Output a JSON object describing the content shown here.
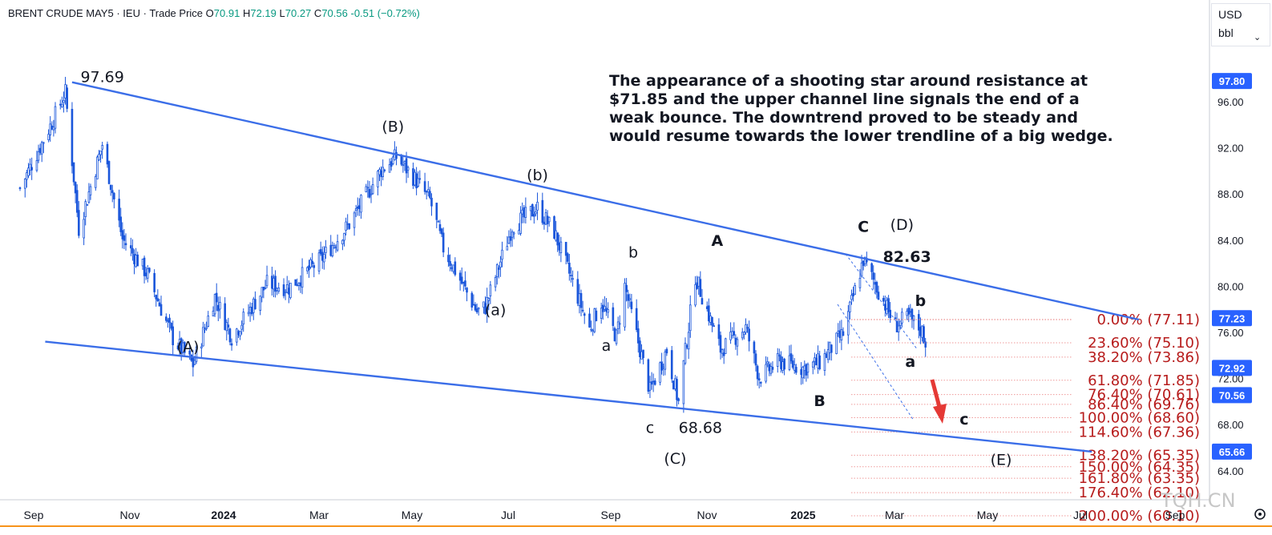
{
  "header": {
    "symbol": "BRENT CRUDE MAY5",
    "exchange": "IEU",
    "price_type": "Trade Price",
    "open_label": "O",
    "open": "70.91",
    "high_label": "H",
    "high": "72.19",
    "low_label": "L",
    "low": "70.27",
    "close_label": "C",
    "close": "70.56",
    "change": "-0.51 (−0.72%)"
  },
  "currency": {
    "unit": "USD",
    "measure": "bbl"
  },
  "colors": {
    "candle": "#1a56db",
    "trendline": "#3b6ee8",
    "fib": "#b71c1c",
    "badge": "#2962ff",
    "arrow": "#e53935"
  },
  "annotation": "The appearance of a shooting star around resistance at $71.85 and the upper channel line signals the end of a weak bounce.  The downtrend proved to be steady and would resume towards the lower trendline of a big wedge.",
  "annotation_lines": [
    "The appearance of a shooting star around resistance at",
    "$71.85 and the upper channel line signals the end of a",
    "weak bounce.  The downtrend proved to be steady and",
    "would resume towards the lower trendline of a big wedge."
  ],
  "watermark": "TQH.CN",
  "chart_data": {
    "type": "line",
    "title": "",
    "xlabel": "",
    "ylabel": "",
    "x_ticks": [
      "Sep",
      "Nov",
      "2024",
      "Mar",
      "May",
      "Jul",
      "Sep",
      "Nov",
      "2025",
      "Mar",
      "May",
      "Jul",
      "Sep"
    ],
    "y_ticks": [
      "96.00",
      "92.00",
      "88.00",
      "84.00",
      "80.00",
      "76.00",
      "72.00",
      "68.00",
      "64.00"
    ],
    "ylim": [
      61,
      99.5
    ],
    "x_range": [
      "2023-08-01",
      "2025-10-01"
    ],
    "grid": false,
    "price_badges": [
      "97.80",
      "77.23",
      "72.92",
      "70.56",
      "65.66"
    ],
    "series": [
      {
        "x": [
          "2023-09-01",
          "2023-09-20",
          "2023-09-28",
          "2023-10-06",
          "2023-10-20",
          "2023-11-01",
          "2023-11-16",
          "2023-12-01",
          "2023-12-13",
          "2023-12-26",
          "2024-01-05",
          "2024-01-26",
          "2024-02-08",
          "2024-02-27",
          "2024-03-15",
          "2024-04-03",
          "2024-04-12",
          "2024-04-22",
          "2024-05-02",
          "2024-05-10",
          "2024-05-30",
          "2024-06-04",
          "2024-06-20",
          "2024-07-05",
          "2024-07-15",
          "2024-08-05",
          "2024-08-12",
          "2024-08-21",
          "2024-08-26",
          "2024-09-10",
          "2024-09-20",
          "2024-09-27",
          "2024-10-07",
          "2024-10-22",
          "2024-11-06",
          "2024-11-14",
          "2024-11-26",
          "2024-12-10",
          "2024-12-20",
          "2025-01-03",
          "2025-01-15",
          "2025-02-03",
          "2025-02-11",
          "2025-02-19",
          "2025-03-05",
          "2025-03-13",
          "2025-03-21"
        ],
        "values": [
          88.5,
          94.2,
          96.8,
          85.0,
          92.3,
          84.1,
          81.0,
          75.5,
          73.2,
          79.1,
          75.6,
          80.2,
          79.9,
          82.3,
          85.4,
          90.1,
          91.2,
          89.5,
          87.5,
          83.3,
          77.8,
          78.2,
          85.2,
          86.8,
          84.7,
          76.3,
          78.6,
          75.6,
          80.0,
          70.9,
          74.5,
          69.9,
          80.9,
          74.5,
          76.4,
          72.1,
          73.5,
          72.9,
          73.4,
          75.9,
          82.3,
          76.6,
          77.3,
          76.1,
          69.3,
          70.8,
          72.2
        ]
      }
    ],
    "trendlines": [
      {
        "from": [
          "2023-10-02",
          97.69
        ],
        "to": [
          "2025-06-28",
          77.11
        ]
      },
      {
        "from": [
          "2023-09-16",
          75.2
        ],
        "to": [
          "2025-05-31",
          65.66
        ]
      }
    ],
    "fibonacci": [
      {
        "label": "0.00% (77.11)",
        "value": 77.11
      },
      {
        "label": "23.60% (75.10)",
        "value": 75.1
      },
      {
        "label": "38.20% (73.86)",
        "value": 73.86
      },
      {
        "label": "61.80% (71.85)",
        "value": 71.85
      },
      {
        "label": "76.40% (70.61)",
        "value": 70.61
      },
      {
        "label": "86.40% (69.76)",
        "value": 69.76
      },
      {
        "label": "100.00% (68.60)",
        "value": 68.6
      },
      {
        "label": "114.60% (67.36)",
        "value": 67.36
      },
      {
        "label": "138.20% (65.35)",
        "value": 65.35
      },
      {
        "label": "150.00% (64.35)",
        "value": 64.35
      },
      {
        "label": "161.80% (63.35)",
        "value": 63.35
      },
      {
        "label": "176.40% (62.10)",
        "value": 62.1
      },
      {
        "label": "200.00% (60.10)",
        "value": 60.1
      }
    ],
    "wave_labels": [
      {
        "text": "97.69",
        "x": "2023-10-20",
        "y": 97.69,
        "bold": false
      },
      {
        "text": "(A)",
        "x": "2023-12-10",
        "y": 74.3,
        "bold": false
      },
      {
        "text": "(B)",
        "x": "2024-04-10",
        "y": 93.4,
        "bold": false
      },
      {
        "text": "(a)",
        "x": "2024-06-10",
        "y": 77.5,
        "bold": false
      },
      {
        "text": "(b)",
        "x": "2024-07-05",
        "y": 89.2,
        "bold": false
      },
      {
        "text": "a",
        "x": "2024-08-15",
        "y": 74.4,
        "bold": false
      },
      {
        "text": "b",
        "x": "2024-08-31",
        "y": 82.5,
        "bold": false
      },
      {
        "text": "c",
        "x": "2024-09-10",
        "y": 67.3,
        "bold": false
      },
      {
        "text": "68.68",
        "x": "2024-10-10",
        "y": 67.3,
        "bold": false
      },
      {
        "text": "(C)",
        "x": "2024-09-25",
        "y": 64.6,
        "bold": false
      },
      {
        "text": "A",
        "x": "2024-10-20",
        "y": 83.5,
        "bold": true
      },
      {
        "text": "B",
        "x": "2024-12-20",
        "y": 69.6,
        "bold": true
      },
      {
        "text": "C",
        "x": "2025-01-15",
        "y": 84.7,
        "bold": true
      },
      {
        "text": "(D)",
        "x": "2025-02-07",
        "y": 84.9,
        "bold": false
      },
      {
        "text": "82.63",
        "x": "2025-02-10",
        "y": 82.1,
        "bold": true
      },
      {
        "text": "b",
        "x": "2025-02-18",
        "y": 78.3,
        "bold": true
      },
      {
        "text": "a",
        "x": "2025-02-12",
        "y": 73.0,
        "bold": true
      },
      {
        "text": "c",
        "x": "2025-03-16",
        "y": 68.0,
        "bold": true
      },
      {
        "text": "(E)",
        "x": "2025-04-07",
        "y": 64.5,
        "bold": false
      }
    ]
  }
}
